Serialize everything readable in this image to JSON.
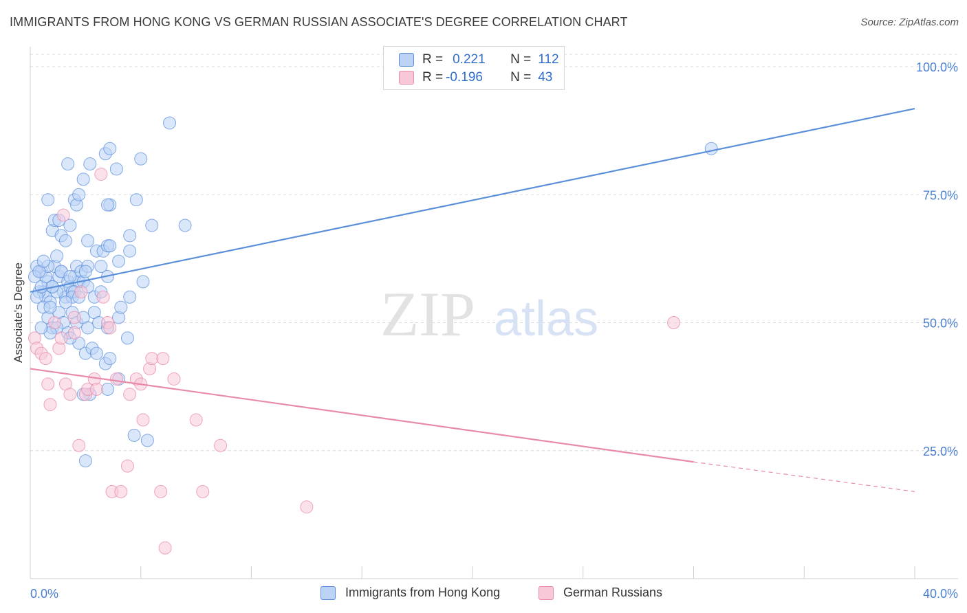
{
  "title": "IMMIGRANTS FROM HONG KONG VS GERMAN RUSSIAN ASSOCIATE'S DEGREE CORRELATION CHART",
  "source": "Source: ZipAtlas.com",
  "watermark": {
    "zip": "ZIP",
    "atlas": "atlas"
  },
  "legend": {
    "rows": [
      {
        "r_label": "R =",
        "r_value": "0.221",
        "n_label": "N =",
        "n_value": "112",
        "color": "#5b8fd9"
      },
      {
        "r_label": "R =",
        "r_value": "-0.196",
        "n_label": "N =",
        "n_value": "43",
        "color": "#e88aa9"
      }
    ]
  },
  "bottom_legend": [
    "Immigrants from Hong Kong",
    "German Russians"
  ],
  "chart_data": {
    "type": "scatter",
    "xlabel": "",
    "ylabel": "Associate's Degree",
    "xlim": [
      0,
      40
    ],
    "ylim": [
      0,
      103
    ],
    "x_tick_labels": [
      "0.0%",
      "40.0%"
    ],
    "y_ticks": [
      25,
      50,
      75,
      100
    ],
    "y_tick_labels": [
      "25.0%",
      "50.0%",
      "75.0%",
      "100.0%"
    ],
    "grid": true,
    "series": [
      {
        "name": "Immigrants from Hong Kong",
        "color": "#5b8fd9",
        "fill": "#bcd3f5",
        "trend": {
          "x0": 0,
          "y0": 56.0,
          "x1": 40,
          "y1": 91.8
        },
        "points": [
          [
            0.3,
            61
          ],
          [
            0.5,
            60
          ],
          [
            0.6,
            56
          ],
          [
            0.7,
            55
          ],
          [
            0.8,
            58
          ],
          [
            0.9,
            54
          ],
          [
            1.0,
            57
          ],
          [
            1.1,
            61
          ],
          [
            1.2,
            63
          ],
          [
            1.3,
            59
          ],
          [
            1.4,
            60
          ],
          [
            1.5,
            56
          ],
          [
            1.6,
            55
          ],
          [
            1.7,
            58
          ],
          [
            1.8,
            57
          ],
          [
            1.9,
            56
          ],
          [
            2.0,
            59
          ],
          [
            2.1,
            61
          ],
          [
            2.2,
            58
          ],
          [
            2.3,
            60
          ],
          [
            0.4,
            56
          ],
          [
            0.6,
            53
          ],
          [
            0.8,
            51
          ],
          [
            1.0,
            49
          ],
          [
            1.3,
            52
          ],
          [
            1.5,
            50
          ],
          [
            1.7,
            48
          ],
          [
            1.9,
            52
          ],
          [
            2.1,
            50
          ],
          [
            2.4,
            51
          ],
          [
            2.6,
            49
          ],
          [
            2.9,
            52
          ],
          [
            3.1,
            50
          ],
          [
            3.5,
            49
          ],
          [
            4.0,
            51
          ],
          [
            4.4,
            47
          ],
          [
            2.2,
            46
          ],
          [
            2.5,
            44
          ],
          [
            2.8,
            45
          ],
          [
            3.0,
            44
          ],
          [
            3.4,
            42
          ],
          [
            3.6,
            43
          ],
          [
            1.8,
            47
          ],
          [
            1.2,
            49
          ],
          [
            0.9,
            48
          ],
          [
            0.5,
            49
          ],
          [
            0.3,
            55
          ],
          [
            0.5,
            57
          ],
          [
            0.7,
            59
          ],
          [
            0.8,
            61
          ],
          [
            1.0,
            68
          ],
          [
            1.1,
            70
          ],
          [
            1.3,
            70
          ],
          [
            1.4,
            67
          ],
          [
            1.6,
            66
          ],
          [
            1.8,
            69
          ],
          [
            2.0,
            74
          ],
          [
            2.1,
            73
          ],
          [
            2.2,
            75
          ],
          [
            2.4,
            78
          ],
          [
            0.8,
            74
          ],
          [
            1.7,
            81
          ],
          [
            2.7,
            81
          ],
          [
            3.4,
            83
          ],
          [
            3.6,
            84
          ],
          [
            3.9,
            80
          ],
          [
            5.0,
            82
          ],
          [
            6.3,
            89
          ],
          [
            4.8,
            74
          ],
          [
            3.6,
            73
          ],
          [
            3.5,
            73
          ],
          [
            2.6,
            66
          ],
          [
            3.0,
            64
          ],
          [
            3.3,
            64
          ],
          [
            3.5,
            65
          ],
          [
            3.6,
            65
          ],
          [
            3.2,
            61
          ],
          [
            3.5,
            59
          ],
          [
            2.6,
            61
          ],
          [
            4.5,
            64
          ],
          [
            4.5,
            67
          ],
          [
            5.5,
            69
          ],
          [
            7.0,
            69
          ],
          [
            4.5,
            55
          ],
          [
            4.1,
            53
          ],
          [
            5.1,
            58
          ],
          [
            2.4,
            58
          ],
          [
            2.0,
            56
          ],
          [
            1.9,
            55
          ],
          [
            1.6,
            54
          ],
          [
            4.0,
            39
          ],
          [
            3.5,
            37
          ],
          [
            4.7,
            28
          ],
          [
            5.3,
            27
          ],
          [
            2.7,
            36
          ],
          [
            2.4,
            36
          ],
          [
            2.5,
            23
          ],
          [
            2.2,
            55
          ],
          [
            2.5,
            60
          ],
          [
            2.9,
            55
          ],
          [
            3.2,
            56
          ],
          [
            0.9,
            53
          ],
          [
            1.4,
            60
          ],
          [
            0.2,
            59
          ],
          [
            0.4,
            60
          ],
          [
            0.6,
            62
          ],
          [
            1.2,
            56
          ],
          [
            1.0,
            57
          ],
          [
            1.8,
            59
          ],
          [
            2.6,
            57
          ],
          [
            4.0,
            62
          ],
          [
            30.8,
            84
          ]
        ]
      },
      {
        "name": "German Russians",
        "color": "#e88aa9",
        "fill": "#f8c8d8",
        "trend": {
          "x0": 0,
          "y0": 41.0,
          "x1": 30.0,
          "y1": 22.8,
          "x_dash_end": 40,
          "y_dash_end": 17.0
        },
        "points": [
          [
            0.2,
            47
          ],
          [
            0.3,
            45
          ],
          [
            0.5,
            44
          ],
          [
            0.7,
            43
          ],
          [
            0.8,
            38
          ],
          [
            0.9,
            34
          ],
          [
            1.1,
            50
          ],
          [
            1.3,
            45
          ],
          [
            1.4,
            47
          ],
          [
            1.6,
            38
          ],
          [
            1.8,
            36
          ],
          [
            2.0,
            51
          ],
          [
            2.2,
            26
          ],
          [
            2.3,
            56
          ],
          [
            2.5,
            36
          ],
          [
            2.6,
            37
          ],
          [
            2.9,
            39
          ],
          [
            3.0,
            37
          ],
          [
            3.2,
            79
          ],
          [
            3.3,
            55
          ],
          [
            3.5,
            50
          ],
          [
            3.6,
            49
          ],
          [
            3.7,
            17
          ],
          [
            3.9,
            39
          ],
          [
            4.1,
            17
          ],
          [
            4.4,
            22
          ],
          [
            4.5,
            36
          ],
          [
            4.8,
            39
          ],
          [
            5.0,
            38
          ],
          [
            5.1,
            31
          ],
          [
            5.4,
            41
          ],
          [
            5.5,
            43
          ],
          [
            5.9,
            17
          ],
          [
            6.0,
            43
          ],
          [
            6.1,
            6
          ],
          [
            6.5,
            39
          ],
          [
            7.5,
            31
          ],
          [
            7.8,
            17
          ],
          [
            8.6,
            26
          ],
          [
            12.5,
            14
          ],
          [
            1.5,
            71
          ],
          [
            29.1,
            50
          ],
          [
            2.0,
            48
          ]
        ]
      }
    ]
  }
}
